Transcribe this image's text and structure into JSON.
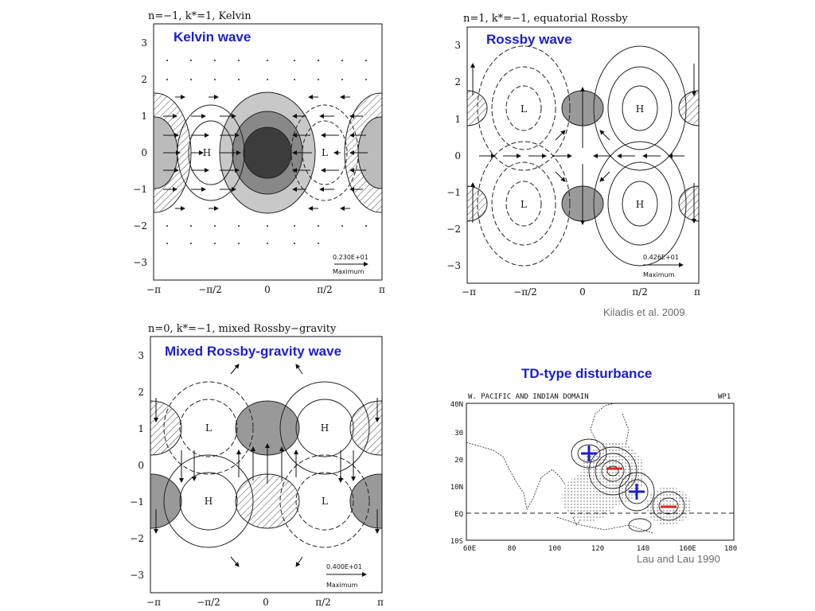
{
  "captions": {
    "kelvin": "Kelvin wave",
    "rossby": "Rossby wave",
    "mrg": "Mixed Rossby-gravity wave",
    "td": "TD-type disturbance"
  },
  "credits": {
    "kiladis": "Kiladis et al. 2009",
    "lau": "Lau and Lau 1990"
  },
  "panels": {
    "kelvin": {
      "title": "n=−1, k*=1, Kelvin",
      "max_value": "0.230E+01",
      "max_label": "Maximum",
      "labels": [
        "H",
        "L"
      ]
    },
    "rossby": {
      "title": "n=1, k*=−1, equatorial Rossby",
      "max_value": "0.426E+01",
      "max_label": "Maximum",
      "labels": [
        "L",
        "H",
        "L",
        "H"
      ]
    },
    "mrg": {
      "title": "n=0, k*=−1, mixed Rossby−gravity",
      "max_value": "0.400E+01",
      "max_label": "Maximum",
      "labels": [
        "L",
        "H",
        "H",
        "L"
      ]
    }
  },
  "axes": {
    "y_ticks": [
      "3",
      "2",
      "1",
      "0",
      "−1",
      "−2",
      "−3"
    ],
    "x_ticks": [
      "−π",
      "−π/2",
      "0",
      "π/2",
      "π"
    ]
  },
  "map": {
    "title": "W. PACIFIC AND INDIAN DOMAIN",
    "code": "WP1",
    "lat_ticks": [
      "40N",
      "30",
      "20",
      "10N",
      "EQ",
      "10S"
    ],
    "lon_ticks": [
      "60E",
      "80",
      "100",
      "120",
      "140",
      "160E",
      "180"
    ]
  },
  "colors": {
    "caption": "#1a1fd0",
    "credit": "#6b6b6b",
    "marker_plus": "#1a1fd0",
    "marker_minus": "#d8261e"
  }
}
